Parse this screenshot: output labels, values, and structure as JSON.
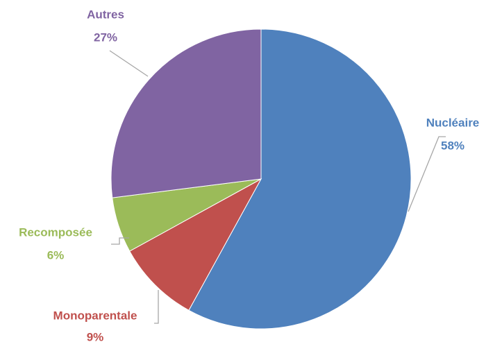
{
  "chart_data": {
    "type": "pie",
    "categories": [
      "Nucléaire",
      "Monoparentale",
      "Recomposée",
      "Autres"
    ],
    "values": [
      58,
      9,
      6,
      27
    ],
    "value_labels": [
      "58%",
      "9%",
      "6%",
      "27%"
    ],
    "colors": [
      "#4f81bd",
      "#c0504d",
      "#9bbb59",
      "#8064a2"
    ]
  }
}
